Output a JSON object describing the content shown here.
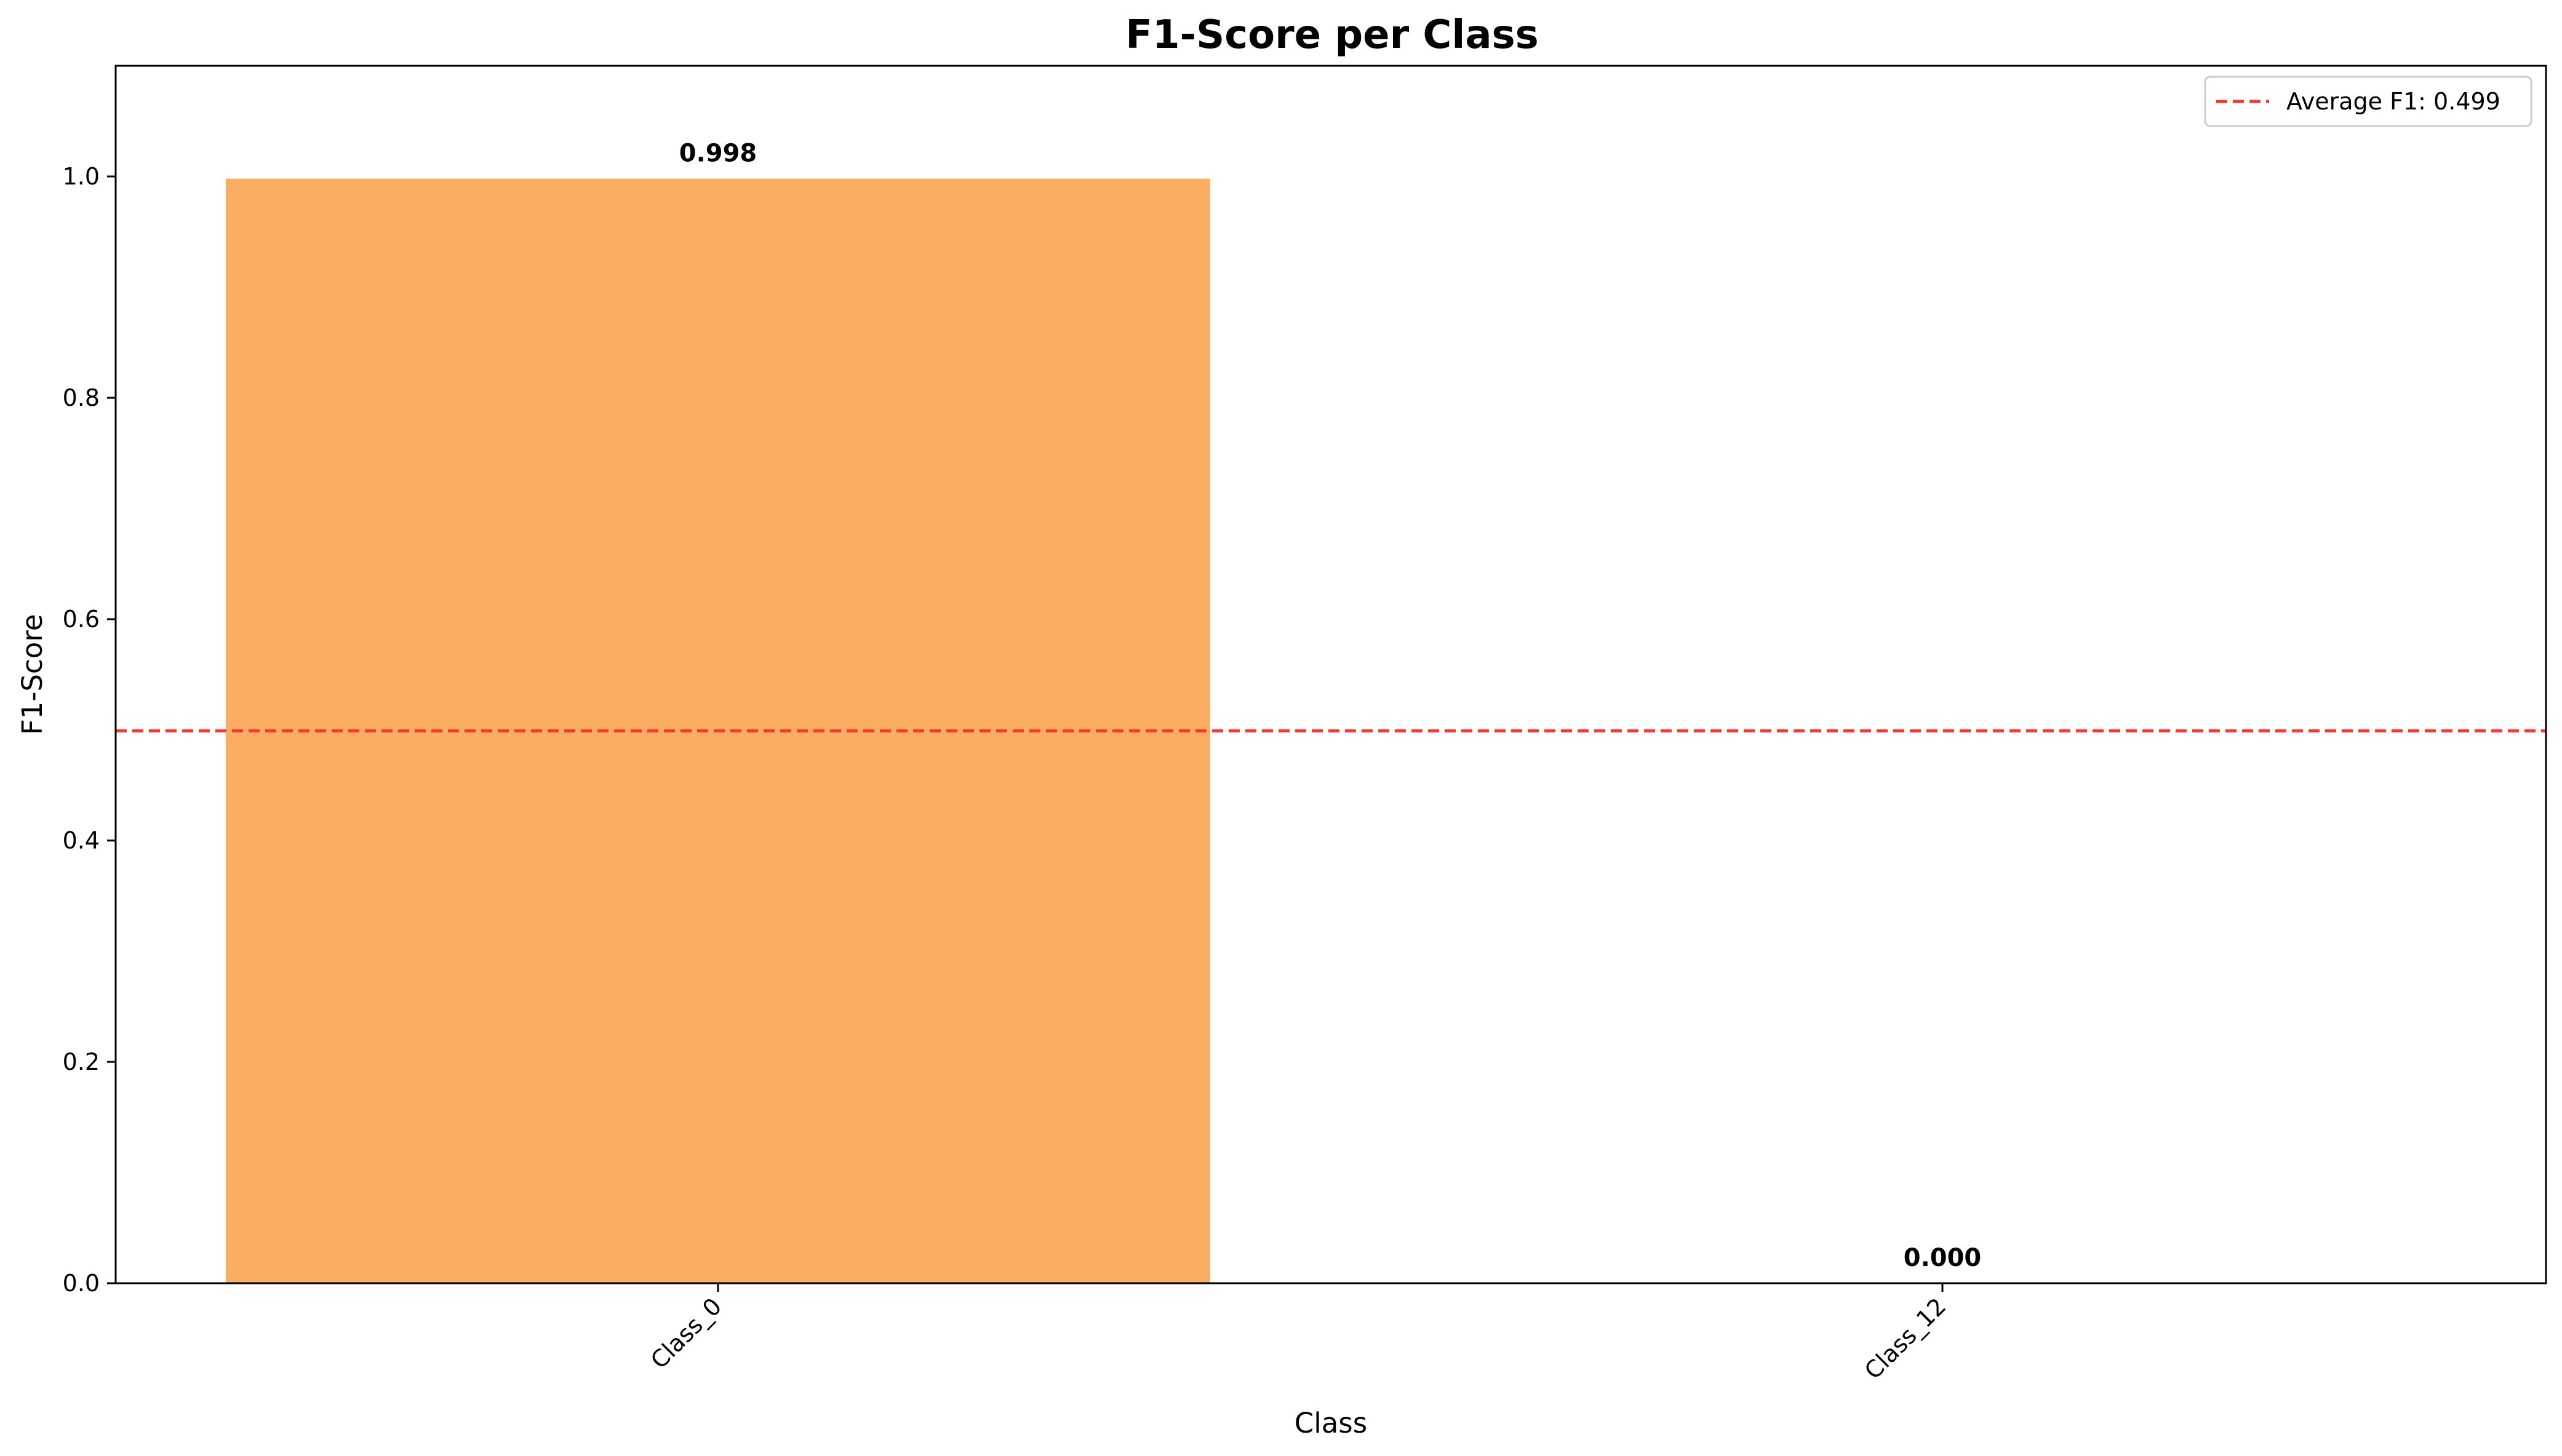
{
  "chart_data": {
    "type": "bar",
    "title": "F1-Score per Class",
    "xlabel": "Class",
    "ylabel": "F1-Score",
    "categories": [
      "Class_0",
      "Class_12"
    ],
    "values": [
      0.998,
      0.0
    ],
    "value_labels": [
      "0.998",
      "0.000"
    ],
    "ylim": [
      0,
      1.1
    ],
    "yticks": [
      0.0,
      0.2,
      0.4,
      0.6,
      0.8,
      1.0
    ],
    "ytick_labels": [
      "0.0",
      "0.2",
      "0.4",
      "0.6",
      "0.8",
      "1.0"
    ],
    "grid": false,
    "bar_color": "#fbae62",
    "reference_line": {
      "value": 0.499,
      "label": "Average F1: 0.499",
      "color": "#ff3333",
      "style": "dashed"
    },
    "legend": {
      "placement": "top-right",
      "entries": [
        "Average F1: 0.499"
      ]
    },
    "xtick_rotation": "45"
  }
}
